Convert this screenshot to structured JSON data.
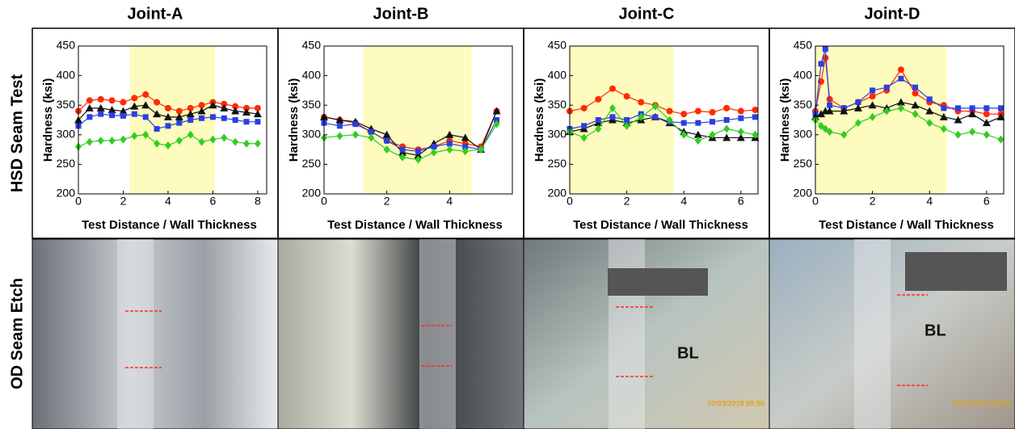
{
  "row_labels": [
    "HSD Seam Test",
    "OD Seam Etch"
  ],
  "photos": [
    {
      "texts": []
    },
    {
      "texts": []
    },
    {
      "texts": [
        "BL",
        "07/03/2018 09:50"
      ]
    },
    {
      "texts": [
        "BL",
        "07/12/2018 15:50"
      ]
    }
  ],
  "chart_data": [
    {
      "type": "line",
      "title": "Joint-A",
      "x_label": "Test Distance / Wall Thickness",
      "y_label": "Hardness (ksi)",
      "xlim": [
        0,
        8.4
      ],
      "xticks": [
        0,
        2,
        4,
        6,
        8
      ],
      "ylim": [
        200,
        450
      ],
      "yticks": [
        200,
        250,
        300,
        350,
        400,
        450
      ],
      "shaded_span": [
        2.3,
        6.1
      ],
      "shade_color": "#fdfbbe",
      "x": [
        0,
        0.5,
        1,
        1.5,
        2,
        2.5,
        3,
        3.5,
        4,
        4.5,
        5,
        5.5,
        6,
        6.5,
        7,
        7.5,
        8
      ],
      "series": [
        {
          "color": "#ff2a00",
          "marker": "circle",
          "values": [
            340,
            358,
            360,
            358,
            355,
            362,
            368,
            355,
            345,
            340,
            345,
            350,
            355,
            352,
            348,
            345,
            345
          ]
        },
        {
          "color": "#111111",
          "marker": "triangle",
          "values": [
            325,
            345,
            345,
            342,
            340,
            348,
            350,
            335,
            330,
            330,
            335,
            340,
            350,
            345,
            340,
            338,
            335
          ]
        },
        {
          "color": "#2a3fe0",
          "marker": "square",
          "values": [
            315,
            330,
            335,
            333,
            332,
            335,
            330,
            310,
            315,
            320,
            325,
            328,
            330,
            328,
            325,
            322,
            322
          ]
        },
        {
          "color": "#33cc22",
          "marker": "diamond",
          "values": [
            280,
            288,
            290,
            290,
            292,
            298,
            300,
            285,
            282,
            290,
            300,
            288,
            292,
            295,
            288,
            285,
            285
          ]
        }
      ]
    },
    {
      "type": "line",
      "title": "Joint-B",
      "x_label": "Test Distance / Wall Thickness",
      "y_label": "Hardness (ksi)",
      "xlim": [
        0,
        6
      ],
      "xticks": [
        0,
        2,
        4
      ],
      "ylim": [
        200,
        450
      ],
      "yticks": [
        200,
        250,
        300,
        350,
        400,
        450
      ],
      "shaded_span": [
        1.25,
        4.7
      ],
      "shade_color": "#fdfbbe",
      "x": [
        0,
        0.5,
        1,
        1.5,
        2,
        2.5,
        3,
        3.5,
        4,
        4.5,
        5,
        5.5
      ],
      "series": [
        {
          "color": "#ff2a00",
          "marker": "circle",
          "values": [
            330,
            325,
            320,
            305,
            290,
            280,
            275,
            280,
            290,
            285,
            280,
            340
          ]
        },
        {
          "color": "#111111",
          "marker": "triangle",
          "values": [
            330,
            325,
            322,
            310,
            300,
            270,
            265,
            285,
            300,
            295,
            275,
            340
          ]
        },
        {
          "color": "#2a3fe0",
          "marker": "square",
          "values": [
            320,
            315,
            318,
            305,
            290,
            275,
            272,
            280,
            285,
            280,
            275,
            325
          ]
        },
        {
          "color": "#33cc22",
          "marker": "diamond",
          "values": [
            295,
            298,
            300,
            295,
            275,
            262,
            258,
            270,
            275,
            272,
            275,
            318
          ]
        }
      ]
    },
    {
      "type": "line",
      "title": "Joint-C",
      "x_label": "Test Distance / Wall Thickness",
      "y_label": "Hardness (ksi)",
      "xlim": [
        0,
        6.6
      ],
      "xticks": [
        0,
        2,
        4,
        6
      ],
      "ylim": [
        200,
        450
      ],
      "yticks": [
        200,
        250,
        300,
        350,
        400,
        450
      ],
      "shaded_span": [
        0,
        3.65
      ],
      "shade_color": "#fdfbbe",
      "x": [
        0,
        0.5,
        1,
        1.5,
        2,
        2.5,
        3,
        3.5,
        4,
        4.5,
        5,
        5.5,
        6,
        6.5
      ],
      "series": [
        {
          "color": "#ff2a00",
          "marker": "circle",
          "values": [
            340,
            345,
            360,
            378,
            365,
            355,
            350,
            340,
            335,
            340,
            338,
            345,
            340,
            342
          ]
        },
        {
          "color": "#111111",
          "marker": "triangle",
          "values": [
            305,
            310,
            320,
            325,
            320,
            325,
            330,
            320,
            305,
            300,
            295,
            295,
            295,
            295
          ]
        },
        {
          "color": "#2a3fe0",
          "marker": "square",
          "values": [
            310,
            315,
            325,
            330,
            325,
            335,
            330,
            322,
            320,
            320,
            322,
            325,
            328,
            330
          ]
        },
        {
          "color": "#33cc22",
          "marker": "diamond",
          "values": [
            305,
            295,
            310,
            345,
            315,
            330,
            348,
            325,
            300,
            290,
            300,
            310,
            305,
            300
          ]
        }
      ]
    },
    {
      "type": "line",
      "title": "Joint-D",
      "x_label": "Test Distance / Wall Thickness",
      "y_label": "Hardness (ksi)",
      "xlim": [
        0,
        6.6
      ],
      "xticks": [
        0,
        2,
        4,
        6
      ],
      "ylim": [
        200,
        450
      ],
      "yticks": [
        200,
        250,
        300,
        350,
        400,
        450
      ],
      "shaded_span": [
        0,
        4.6
      ],
      "shade_color": "#fdfbbe",
      "x": [
        0,
        0.2,
        0.35,
        0.5,
        1,
        1.5,
        2,
        2.5,
        3,
        3.5,
        4,
        4.5,
        5,
        5.5,
        6,
        6.5
      ],
      "series": [
        {
          "color": "#ff2a00",
          "marker": "circle",
          "values": [
            340,
            390,
            430,
            360,
            345,
            355,
            365,
            375,
            410,
            370,
            355,
            350,
            340,
            340,
            335,
            335
          ]
        },
        {
          "color": "#2a3fe0",
          "marker": "square",
          "values": [
            335,
            420,
            445,
            350,
            345,
            355,
            375,
            380,
            395,
            380,
            360,
            345,
            345,
            345,
            345,
            345
          ]
        },
        {
          "color": "#111111",
          "marker": "triangle",
          "values": [
            330,
            335,
            340,
            340,
            340,
            345,
            350,
            345,
            355,
            350,
            340,
            330,
            325,
            335,
            320,
            330
          ]
        },
        {
          "color": "#33cc22",
          "marker": "diamond",
          "values": [
            325,
            315,
            310,
            305,
            300,
            320,
            330,
            340,
            345,
            335,
            320,
            310,
            300,
            305,
            300,
            292
          ]
        }
      ]
    }
  ]
}
